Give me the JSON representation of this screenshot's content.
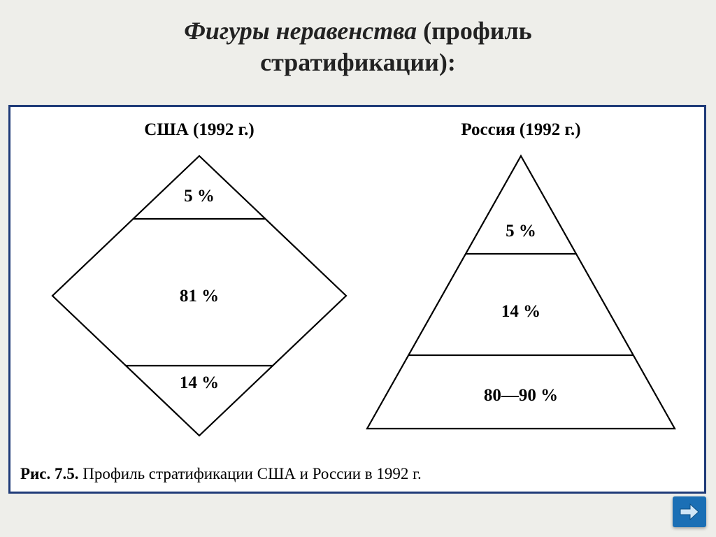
{
  "title": {
    "italic_part": "Фигуры неравенства",
    "rest_line1": " (профиль",
    "line2": "стратификации):"
  },
  "figure": {
    "stroke_color": "#000000",
    "stroke_width": 2.2,
    "background": "#ffffff",
    "border_color": "#1f3b78",
    "label_fontsize": 25,
    "header_fontsize": 25,
    "header_weight": "bold",
    "usa": {
      "header": "США (1992 г.)",
      "shape": "diamond",
      "labels": [
        "5 %",
        "81 %",
        "14 %"
      ]
    },
    "russia": {
      "header": "Россия (1992 г.)",
      "shape": "triangle",
      "labels": [
        "5 %",
        "14 %",
        "80—90 %"
      ]
    }
  },
  "caption": {
    "prefix": "Рис. 7.5.",
    "text": " Профиль стратификации США и России в 1992 г."
  },
  "nav": {
    "name": "next-button",
    "bg": "#1b6fb5",
    "arrow_color": "#d0e6f7"
  }
}
